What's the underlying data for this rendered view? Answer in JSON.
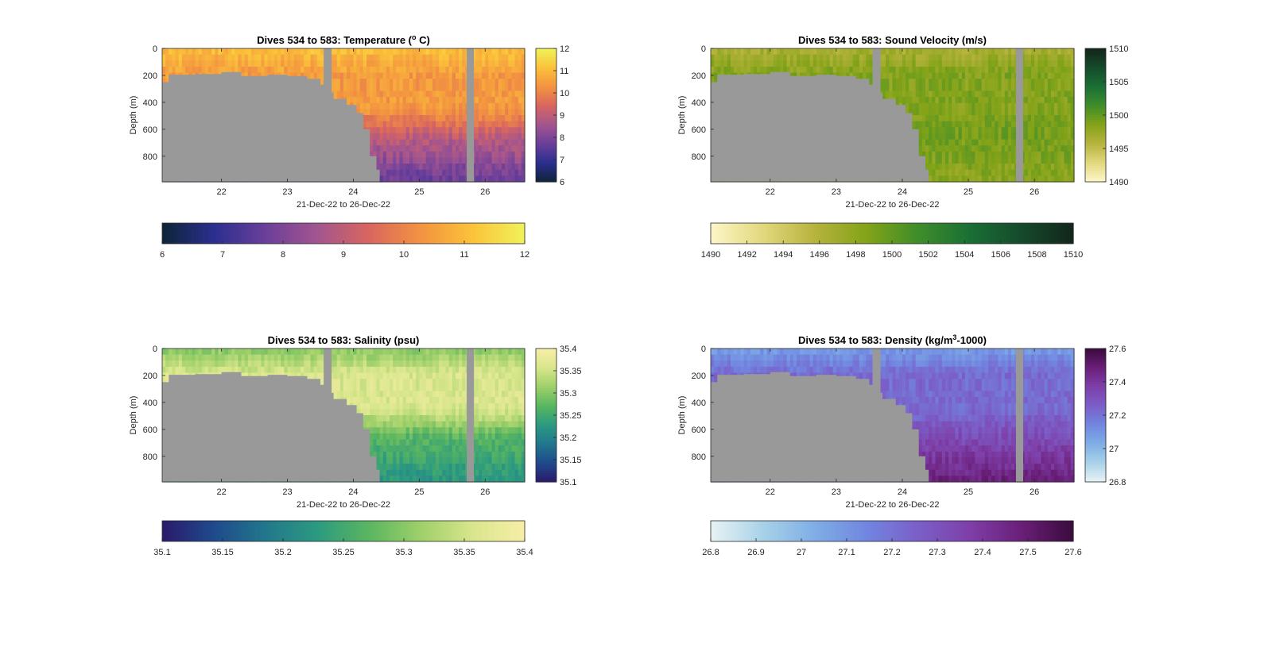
{
  "figure": {
    "background": "#ffffff",
    "mask_color": "#999999"
  },
  "chart_data": [
    {
      "type": "heatmap",
      "title": "Dives 534 to 583: Temperature (",
      "title_sup": "o",
      "title_end": " C)",
      "xlabel": "21-Dec-22 to 26-Dec-22",
      "ylabel": "Depth (m)",
      "xlim": [
        21.1,
        26.6
      ],
      "ylim": [
        0,
        990
      ],
      "y_reversed": true,
      "x_ticks": [
        "22",
        "23",
        "24",
        "25",
        "26"
      ],
      "y_ticks": [
        "0",
        "200",
        "400",
        "600",
        "800"
      ],
      "colormap": [
        "#0d2436",
        "#2b2f8f",
        "#6b3f9a",
        "#a3558f",
        "#d9665f",
        "#f39340",
        "#fbc33a",
        "#f0f25a"
      ],
      "clim": [
        6,
        12
      ],
      "colorbar_ticks": [
        "12",
        "11",
        "10",
        "9",
        "8",
        "7",
        "6"
      ],
      "h_colorbar_ticks": [
        "6",
        "7",
        "8",
        "9",
        "10",
        "11",
        "12"
      ],
      "value_summary": {
        "surface": 11.1,
        "depth_200_400": 10.4,
        "depth_600": 9.0,
        "depth_900": 7.6
      },
      "shelf_depth_m": [
        [
          21.1,
          250
        ],
        [
          21.2,
          195
        ],
        [
          21.6,
          190
        ],
        [
          22.0,
          175
        ],
        [
          22.3,
          205
        ],
        [
          22.7,
          195
        ],
        [
          23.0,
          205
        ],
        [
          23.3,
          225
        ],
        [
          23.5,
          270
        ],
        [
          23.6,
          330
        ],
        [
          23.7,
          375
        ],
        [
          23.9,
          420
        ],
        [
          24.05,
          480
        ],
        [
          24.15,
          600
        ],
        [
          24.25,
          800
        ],
        [
          24.35,
          900
        ],
        [
          24.4,
          990
        ]
      ],
      "no_data_columns": [
        [
          23.55,
          23.67
        ],
        [
          25.72,
          25.83
        ]
      ]
    },
    {
      "type": "heatmap",
      "title": "Dives 534 to 583: Sound Velocity (m/s)",
      "title_sup": "",
      "title_end": "",
      "xlabel": "21-Dec-22 to 26-Dec-22",
      "ylabel": "Depth (m)",
      "xlim": [
        21.1,
        26.6
      ],
      "ylim": [
        0,
        990
      ],
      "y_reversed": true,
      "x_ticks": [
        "22",
        "23",
        "24",
        "25",
        "26"
      ],
      "y_ticks": [
        "0",
        "200",
        "400",
        "600",
        "800"
      ],
      "colormap": [
        "#fdf6c8",
        "#e2d87e",
        "#b7b33e",
        "#83a318",
        "#3f8d2a",
        "#1a6f35",
        "#154a2c",
        "#12261a"
      ],
      "clim": [
        1490,
        1510
      ],
      "colorbar_ticks": [
        "1510",
        "1505",
        "1500",
        "1495",
        "1490"
      ],
      "h_colorbar_ticks": [
        "1490",
        "1492",
        "1494",
        "1496",
        "1498",
        "1500",
        "1502",
        "1504",
        "1506",
        "1508",
        "1510"
      ],
      "value_summary": {
        "surface": 1496.5,
        "depth_200_400": 1498.5,
        "depth_600": 1499.3,
        "depth_900": 1498.0
      },
      "shelf_depth_m": [
        [
          21.1,
          250
        ],
        [
          21.2,
          195
        ],
        [
          21.6,
          190
        ],
        [
          22.0,
          175
        ],
        [
          22.3,
          205
        ],
        [
          22.7,
          195
        ],
        [
          23.0,
          205
        ],
        [
          23.3,
          225
        ],
        [
          23.5,
          270
        ],
        [
          23.6,
          330
        ],
        [
          23.7,
          375
        ],
        [
          23.9,
          420
        ],
        [
          24.05,
          480
        ],
        [
          24.15,
          600
        ],
        [
          24.25,
          800
        ],
        [
          24.35,
          900
        ],
        [
          24.4,
          990
        ]
      ],
      "no_data_columns": [
        [
          23.55,
          23.67
        ],
        [
          25.72,
          25.83
        ]
      ]
    },
    {
      "type": "heatmap",
      "title": "Dives 534 to 583: Salinity (psu)",
      "title_sup": "",
      "title_end": "",
      "xlabel": "21-Dec-22 to 26-Dec-22",
      "ylabel": "Depth (m)",
      "xlim": [
        21.1,
        26.6
      ],
      "ylim": [
        0,
        990
      ],
      "y_reversed": true,
      "x_ticks": [
        "22",
        "23",
        "24",
        "25",
        "26"
      ],
      "y_ticks": [
        "0",
        "200",
        "400",
        "600",
        "800"
      ],
      "colormap": [
        "#2a1a6b",
        "#1f4a8c",
        "#21778c",
        "#2c9a80",
        "#5ab660",
        "#9fd06a",
        "#d9e68c",
        "#f8eea8"
      ],
      "clim": [
        35.1,
        35.4
      ],
      "colorbar_ticks": [
        "35.4",
        "35.35",
        "35.3",
        "35.25",
        "35.2",
        "35.15",
        "35.1"
      ],
      "h_colorbar_ticks": [
        "35.1",
        "35.15",
        "35.2",
        "35.25",
        "35.3",
        "35.35",
        "35.4"
      ],
      "value_summary": {
        "surface": 35.3,
        "depth_200_400": 35.36,
        "depth_600": 35.27,
        "depth_900": 35.22
      },
      "shelf_depth_m": [
        [
          21.1,
          250
        ],
        [
          21.2,
          195
        ],
        [
          21.6,
          190
        ],
        [
          22.0,
          175
        ],
        [
          22.3,
          205
        ],
        [
          22.7,
          195
        ],
        [
          23.0,
          205
        ],
        [
          23.3,
          225
        ],
        [
          23.5,
          270
        ],
        [
          23.6,
          330
        ],
        [
          23.7,
          375
        ],
        [
          23.9,
          420
        ],
        [
          24.05,
          480
        ],
        [
          24.15,
          600
        ],
        [
          24.25,
          800
        ],
        [
          24.35,
          900
        ],
        [
          24.4,
          990
        ]
      ],
      "no_data_columns": [
        [
          23.55,
          23.67
        ],
        [
          25.72,
          25.83
        ]
      ]
    },
    {
      "type": "heatmap",
      "title": "Dives 534 to 583: Density (kg/m",
      "title_sup": "3",
      "title_end": "-1000)",
      "xlabel": "21-Dec-22 to 26-Dec-22",
      "ylabel": "Depth (m)",
      "xlim": [
        21.1,
        26.6
      ],
      "ylim": [
        0,
        990
      ],
      "y_reversed": true,
      "x_ticks": [
        "22",
        "23",
        "24",
        "25",
        "26"
      ],
      "y_ticks": [
        "0",
        "200",
        "400",
        "600",
        "800"
      ],
      "colormap": [
        "#e8f3f5",
        "#a8d2e8",
        "#7faee6",
        "#7186e0",
        "#7b5fc8",
        "#7e3fa8",
        "#6a1f78",
        "#3a0b3c"
      ],
      "clim": [
        26.8,
        27.6
      ],
      "colorbar_ticks": [
        "27.6",
        "27.4",
        "27.2",
        "27",
        "26.8"
      ],
      "h_colorbar_ticks": [
        "26.8",
        "26.9",
        "27",
        "27.1",
        "27.2",
        "27.3",
        "27.4",
        "27.5",
        "27.6"
      ],
      "value_summary": {
        "surface": 27.08,
        "depth_200_400": 27.22,
        "depth_600": 27.32,
        "depth_900": 27.48
      },
      "shelf_depth_m": [
        [
          21.1,
          250
        ],
        [
          21.2,
          195
        ],
        [
          21.6,
          190
        ],
        [
          22.0,
          175
        ],
        [
          22.3,
          205
        ],
        [
          22.7,
          195
        ],
        [
          23.0,
          205
        ],
        [
          23.3,
          225
        ],
        [
          23.5,
          270
        ],
        [
          23.6,
          330
        ],
        [
          23.7,
          375
        ],
        [
          23.9,
          420
        ],
        [
          24.05,
          480
        ],
        [
          24.15,
          600
        ],
        [
          24.25,
          800
        ],
        [
          24.35,
          900
        ],
        [
          24.4,
          990
        ]
      ],
      "no_data_columns": [
        [
          23.55,
          23.67
        ],
        [
          25.72,
          25.83
        ]
      ]
    }
  ]
}
